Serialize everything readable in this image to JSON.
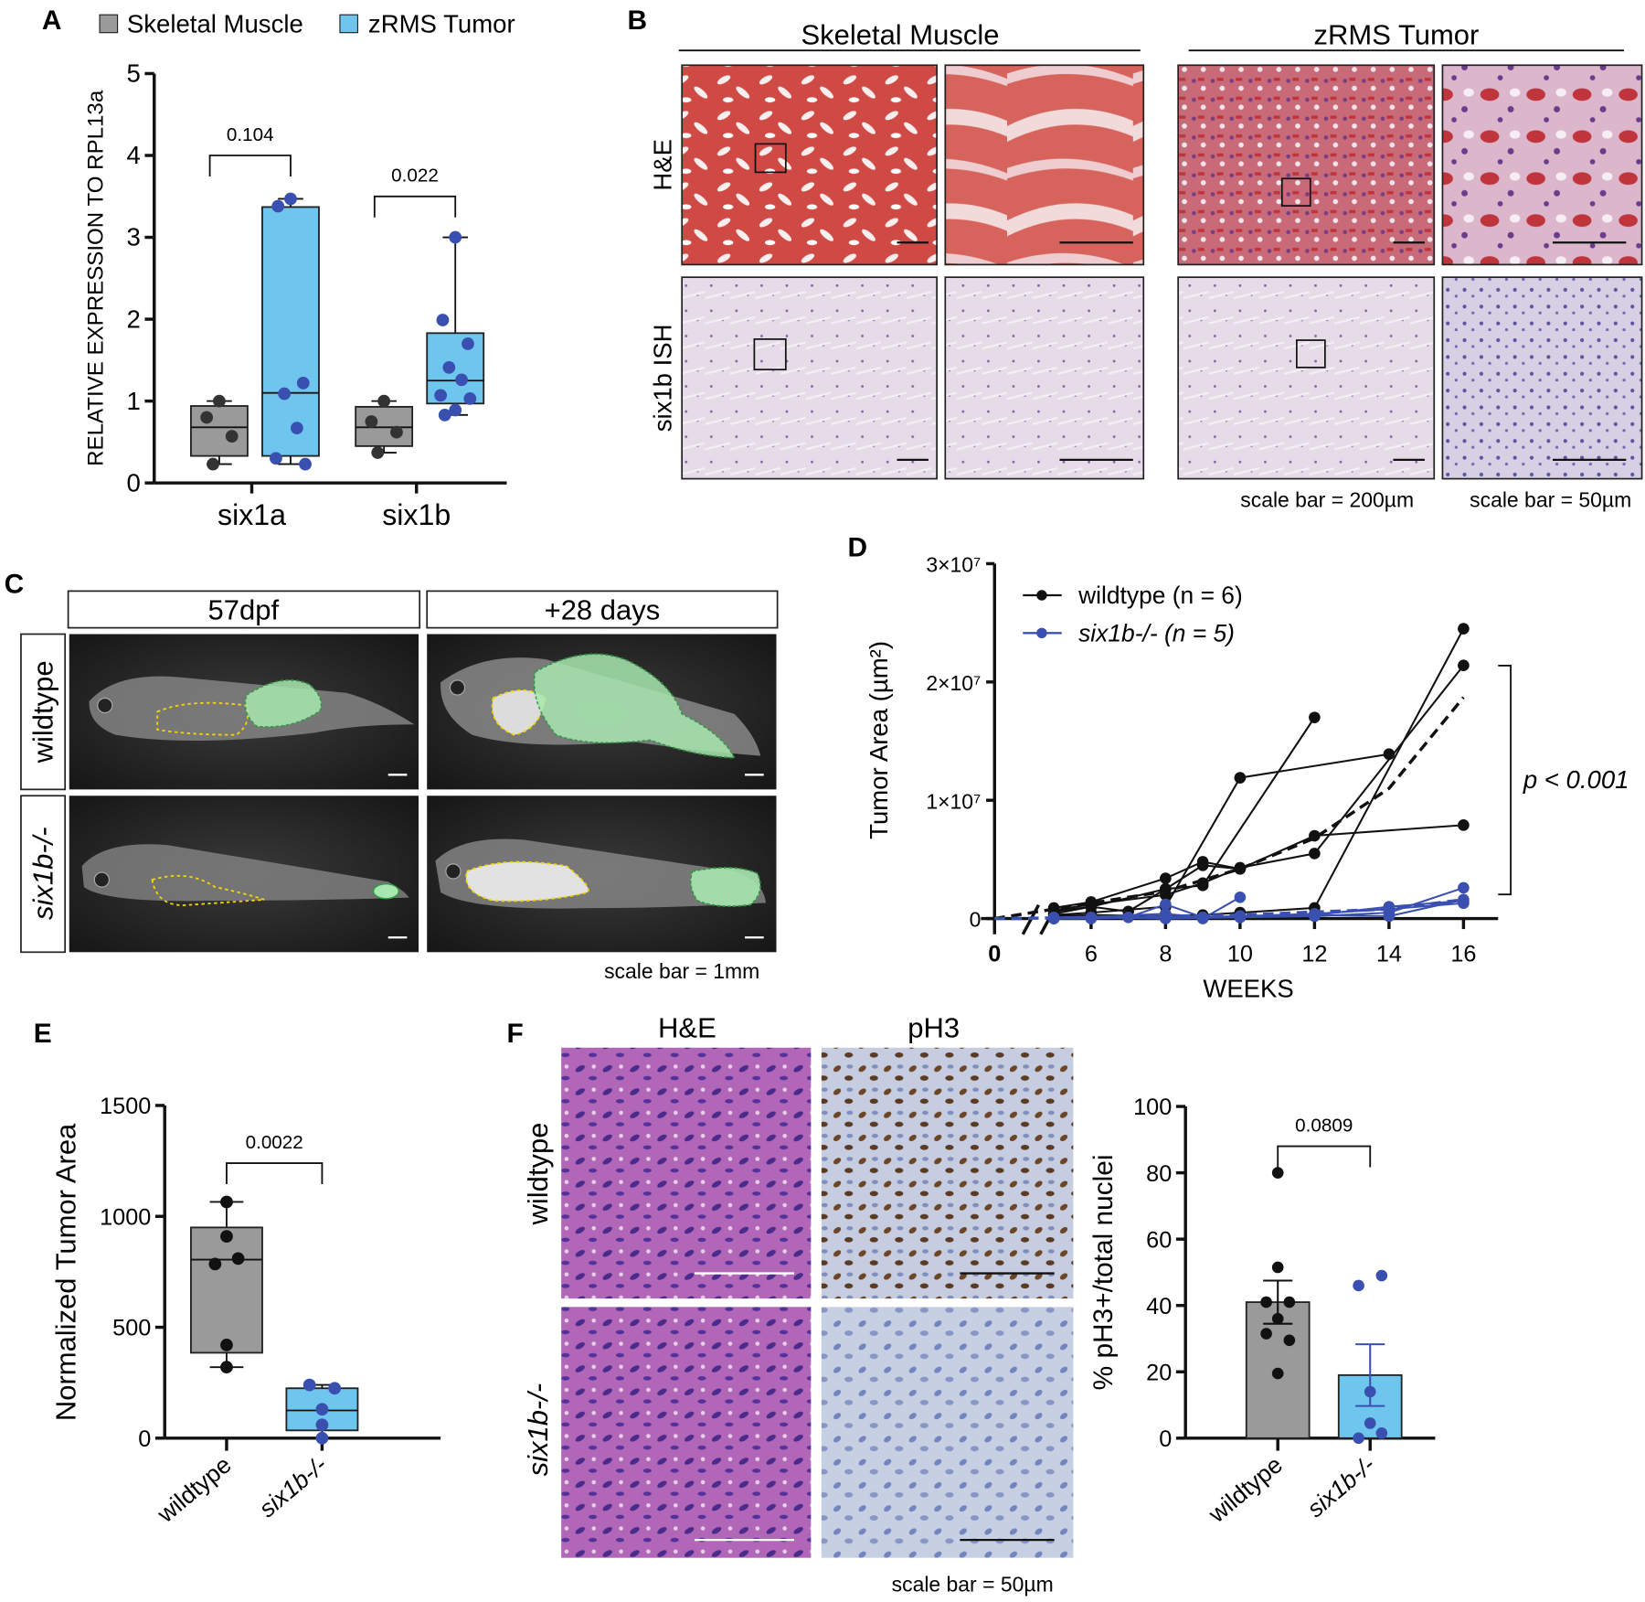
{
  "panels": {
    "A": {
      "letter": "A"
    },
    "B": {
      "letter": "B",
      "col_headers": [
        "Skeletal Muscle",
        "zRMS Tumor"
      ],
      "row_labels": [
        "H&E",
        "six1b ISH"
      ],
      "scale_bars": [
        "scale bar = 200µm",
        "scale bar = 50µm"
      ]
    },
    "C": {
      "letter": "C",
      "col_headers": [
        "57dpf",
        "+28 days"
      ],
      "row_labels": [
        "wildtype",
        "six1b-/-"
      ],
      "scale_bar": "scale bar = 1mm"
    },
    "D": {
      "letter": "D"
    },
    "E": {
      "letter": "E"
    },
    "F": {
      "letter": "F",
      "col_headers": [
        "H&E",
        "pH3"
      ],
      "row_labels": [
        "wildtype",
        "six1b-/-"
      ],
      "scale_bar": "scale bar = 50µm"
    }
  },
  "colors": {
    "muscle_gray": "#9a9a9a",
    "tumor_blue": "#6ec6ef",
    "ko_point": "#3a50b0",
    "wt_point": "#111111",
    "fluor_green": "#a8e8b0",
    "outline_yellow": "#f2d600"
  },
  "chart_data": [
    {
      "id": "A",
      "type": "box",
      "legend": [
        "Skeletal Muscle",
        "zRMS Tumor"
      ],
      "legend_placement": "top",
      "ylabel": "RELATIVE EXPRESSION TO RPL13a",
      "ylim": [
        0,
        5
      ],
      "yticks": [
        "0",
        "1",
        "2",
        "3",
        "4",
        "5"
      ],
      "categories": [
        "six1a",
        "six1b"
      ],
      "groups": [
        {
          "category": "six1a",
          "series": "Skeletal Muscle",
          "min": 0.23,
          "q1": 0.33,
          "median": 0.68,
          "q3": 0.94,
          "max": 1.0,
          "points": [
            1.0,
            0.8,
            0.57,
            0.23
          ]
        },
        {
          "category": "six1a",
          "series": "zRMS Tumor",
          "min": 0.23,
          "q1": 0.33,
          "median": 1.1,
          "q3": 3.37,
          "max": 3.47,
          "points": [
            3.47,
            3.38,
            1.22,
            1.09,
            0.67,
            0.3,
            0.23
          ]
        },
        {
          "category": "six1b",
          "series": "Skeletal Muscle",
          "min": 0.37,
          "q1": 0.45,
          "median": 0.68,
          "q3": 0.93,
          "max": 1.0,
          "points": [
            1.0,
            0.75,
            0.62,
            0.37
          ]
        },
        {
          "category": "six1b",
          "series": "zRMS Tumor",
          "min": 0.83,
          "q1": 0.97,
          "median": 1.25,
          "q3": 1.83,
          "max": 3.0,
          "points": [
            3.0,
            1.99,
            1.7,
            1.41,
            1.26,
            1.07,
            1.03,
            0.89,
            0.83
          ]
        }
      ],
      "pvalues": [
        {
          "label": "0.104",
          "category": "six1a",
          "level": 4.0
        },
        {
          "label": "0.022",
          "category": "six1b",
          "level": 3.5
        }
      ]
    },
    {
      "id": "D",
      "type": "line",
      "xlabel": "WEEKS",
      "ylabel": "Tumor Area (µm²)",
      "ylim": [
        0,
        30000000
      ],
      "yticks": [
        "0",
        "1×10⁷",
        "2×10⁷",
        "3×10⁷"
      ],
      "xticks": [
        "0",
        "6",
        "8",
        "10",
        "12",
        "14",
        "16"
      ],
      "x_axis_break": true,
      "annotation": "p < 0.001",
      "legend_placement": "top-left",
      "series": [
        {
          "name": "wildtype (n = 6)",
          "color": "#111111",
          "subjects": [
            [
              [
                5,
                0.9
              ],
              [
                6,
                1.4
              ],
              [
                8,
                3.4
              ],
              [
                9,
                4.8
              ],
              [
                10,
                4.2
              ],
              [
                12,
                7.0
              ],
              [
                16,
                7.9
              ]
            ],
            [
              [
                5,
                0.3
              ],
              [
                6,
                0.5
              ],
              [
                8,
                1.0
              ],
              [
                10,
                11.9
              ],
              [
                14,
                13.9
              ]
            ],
            [
              [
                5,
                0.2
              ],
              [
                6,
                0.3
              ],
              [
                8,
                0.2
              ],
              [
                9,
                0.3
              ],
              [
                10,
                0.5
              ],
              [
                12,
                0.9
              ],
              [
                16,
                24.5
              ]
            ],
            [
              [
                5,
                0.6
              ],
              [
                6,
                1.0
              ],
              [
                8,
                2.5
              ],
              [
                9,
                2.8
              ],
              [
                12,
                17.0
              ]
            ],
            [
              [
                5,
                0.7
              ],
              [
                6,
                1.2
              ],
              [
                8,
                2.0
              ],
              [
                9,
                3.0
              ],
              [
                10,
                4.3
              ],
              [
                12,
                5.5
              ],
              [
                16,
                21.4
              ]
            ],
            [
              [
                5,
                0.4
              ],
              [
                6,
                1.0
              ],
              [
                7,
                0.6
              ],
              [
                8,
                2.5
              ],
              [
                9,
                4.5
              ],
              [
                10,
                4.2
              ]
            ]
          ],
          "fit": [
            [
              0,
              0
            ],
            [
              5,
              0.8
            ],
            [
              8,
              2.3
            ],
            [
              10,
              4.2
            ],
            [
              12,
              6.8
            ],
            [
              14,
              11.0
            ],
            [
              16,
              18.7
            ]
          ]
        },
        {
          "name": "six1b-/- (n = 5)",
          "color": "#3a50b0",
          "subjects": [
            [
              [
                5,
                0.1
              ],
              [
                7,
                0.1
              ],
              [
                8,
                1.2
              ],
              [
                9,
                0.1
              ],
              [
                10,
                0.1
              ],
              [
                12,
                0.2
              ],
              [
                14,
                0.5
              ],
              [
                16,
                2.6
              ]
            ],
            [
              [
                5,
                0.0
              ],
              [
                6,
                0.0
              ],
              [
                8,
                0.2
              ],
              [
                9,
                0.0
              ],
              [
                10,
                1.8
              ]
            ],
            [
              [
                5,
                0.0
              ],
              [
                6,
                0.1
              ],
              [
                8,
                0.0
              ],
              [
                10,
                0.1
              ],
              [
                12,
                0.3
              ],
              [
                14,
                1.0
              ],
              [
                16,
                1.5
              ]
            ],
            [
              [
                5,
                0.0
              ],
              [
                8,
                0.1
              ],
              [
                10,
                0.2
              ],
              [
                12,
                0.4
              ],
              [
                14,
                0.8
              ],
              [
                16,
                1.3
              ]
            ],
            [
              [
                5,
                0.0
              ],
              [
                8,
                0.4
              ],
              [
                9,
                0.1
              ],
              [
                10,
                0.2
              ],
              [
                12,
                0.3
              ],
              [
                14,
                0.2
              ],
              [
                16,
                1.6
              ]
            ]
          ],
          "fit": [
            [
              0,
              0
            ],
            [
              5,
              0.05
            ],
            [
              10,
              0.3
            ],
            [
              14,
              0.8
            ],
            [
              16,
              1.6
            ]
          ]
        }
      ],
      "y_unit_multiplier": 1000000
    },
    {
      "id": "E",
      "type": "box",
      "ylabel": "Normalized Tumor Area",
      "ylim": [
        0,
        1500
      ],
      "yticks": [
        "0",
        "500",
        "1000",
        "1500"
      ],
      "categories": [
        "wildtype",
        "six1b-/-"
      ],
      "groups": [
        {
          "category": "wildtype",
          "min": 320,
          "q1": 385,
          "median": 805,
          "q3": 950,
          "max": 1065,
          "points": [
            1065,
            910,
            810,
            785,
            420,
            320
          ]
        },
        {
          "category": "six1b-/-",
          "min": 0,
          "q1": 35,
          "median": 125,
          "q3": 225,
          "max": 240,
          "points": [
            240,
            225,
            130,
            60,
            0
          ]
        }
      ],
      "pvalues": [
        {
          "label": "0.0022"
        }
      ]
    },
    {
      "id": "F",
      "type": "bar",
      "ylabel": "% pH3+/total nuclei",
      "ylim": [
        0,
        100
      ],
      "yticks": [
        "0",
        "20",
        "40",
        "60",
        "80",
        "100"
      ],
      "categories": [
        "wildtype",
        "six1b-/-"
      ],
      "groups": [
        {
          "category": "wildtype",
          "mean": 41,
          "sem": 6.5,
          "points": [
            80,
            51.5,
            41,
            41,
            36,
            31.5,
            29.5,
            19.5
          ]
        },
        {
          "category": "six1b-/-",
          "mean": 19,
          "sem": 9.3,
          "points": [
            49,
            46,
            14,
            4.5,
            1.5,
            0
          ]
        }
      ],
      "pvalues": [
        {
          "label": "0.0809"
        }
      ]
    }
  ]
}
